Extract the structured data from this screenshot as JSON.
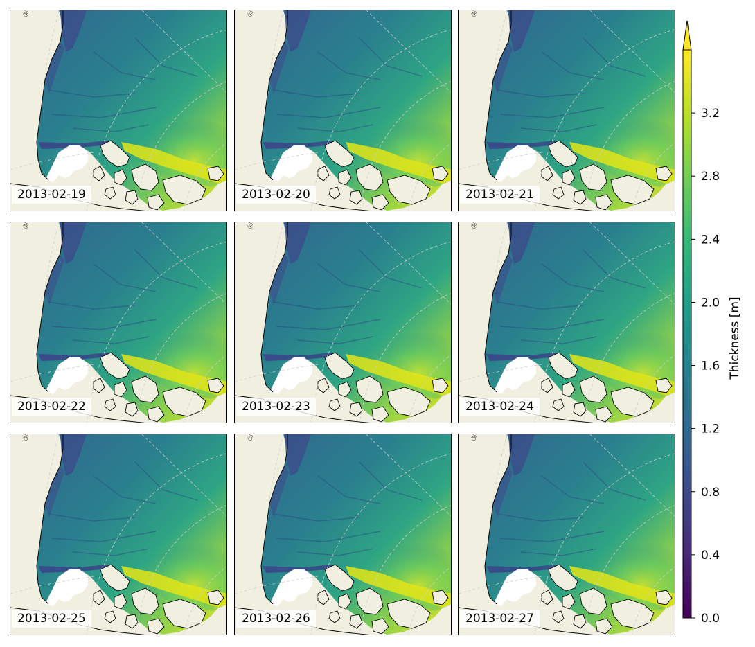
{
  "panels": [
    {
      "date": "2013-02-19"
    },
    {
      "date": "2013-02-20"
    },
    {
      "date": "2013-02-21"
    },
    {
      "date": "2013-02-22"
    },
    {
      "date": "2013-02-23"
    },
    {
      "date": "2013-02-24"
    },
    {
      "date": "2013-02-25"
    },
    {
      "date": "2013-02-26"
    },
    {
      "date": "2013-02-27"
    }
  ],
  "colorbar": {
    "label": "Thickness [m]",
    "min": 0.0,
    "max": 3.6,
    "extend": "max",
    "ticks": [
      "0.0",
      "0.4",
      "0.8",
      "1.2",
      "1.6",
      "2.0",
      "2.4",
      "2.8",
      "3.2"
    ],
    "colormap": "viridis"
  },
  "colors": {
    "land": "#f0efe0",
    "coastline": "#000000",
    "graticule": "#d0d0d0"
  }
}
